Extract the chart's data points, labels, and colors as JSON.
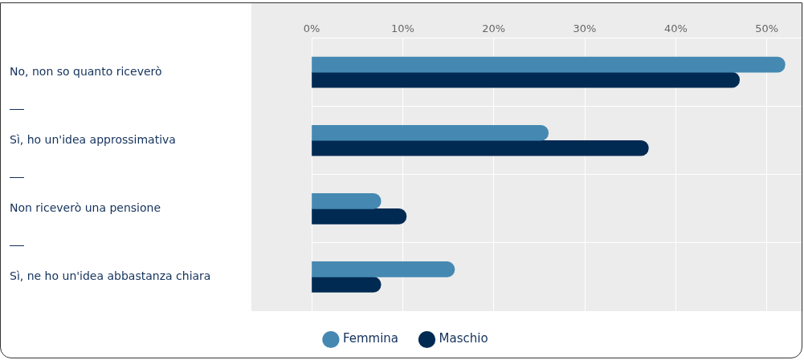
{
  "chart_data": {
    "type": "bar",
    "orientation": "horizontal",
    "categories": [
      "No, non so quanto riceverò",
      "Sì, ho un'idea approssimativa",
      "Non riceverò una pensione",
      "Sì, ne ho un'idea abbastanza chiara"
    ],
    "series": [
      {
        "name": "Femmina",
        "color": "#4589b2",
        "values": [
          52,
          26,
          7.6,
          15.7
        ]
      },
      {
        "name": "Maschio",
        "color": "#012a52",
        "values": [
          47,
          37,
          10.4,
          7.6
        ]
      }
    ],
    "xlim": [
      0,
      54
    ],
    "xticks": [
      {
        "value": 0,
        "label": "0%"
      },
      {
        "value": 10,
        "label": "10%"
      },
      {
        "value": 20,
        "label": "20%"
      },
      {
        "value": 30,
        "label": "30%"
      },
      {
        "value": 40,
        "label": "40%"
      },
      {
        "value": 50,
        "label": "50%"
      }
    ],
    "grid": true,
    "legend": "bottom"
  }
}
